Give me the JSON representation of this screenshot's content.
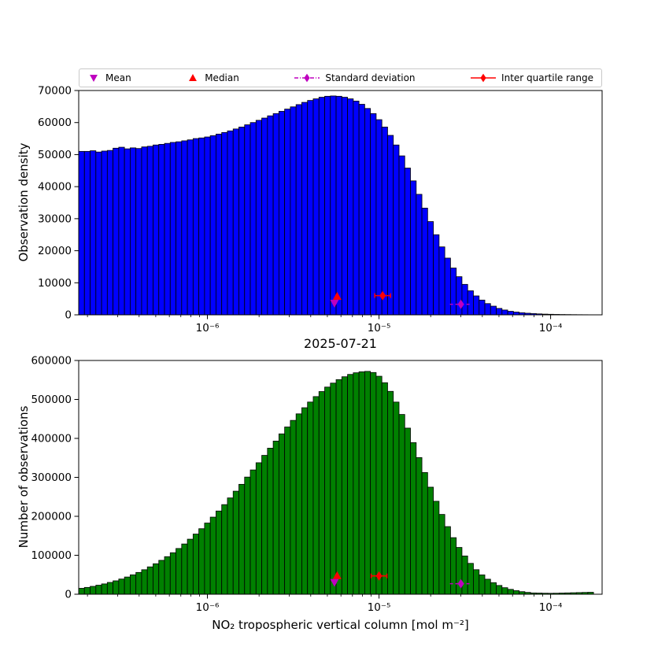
{
  "figure": {
    "title_between": "2025-07-21",
    "xlabel": "NO₂ tropospheric vertical column [mol m⁻²]",
    "background": "#ffffff"
  },
  "legend": {
    "position": "top",
    "items": [
      {
        "label": "Mean",
        "marker": "triangle-down",
        "color": "#bf00bf",
        "line": "none"
      },
      {
        "label": "Median",
        "marker": "triangle-up",
        "color": "#ff0000",
        "line": "none"
      },
      {
        "label": "Standard deviation",
        "marker": "diamond",
        "color": "#bf00bf",
        "line": "dashdot"
      },
      {
        "label": "Inter quartile range",
        "marker": "diamond",
        "color": "#ff0000",
        "line": "solid"
      }
    ]
  },
  "chart_data": [
    {
      "type": "bar",
      "name": "observation-density-histogram",
      "ylabel": "Observation density",
      "bar_color": "#0000ff",
      "edge_color": "#000000",
      "x_scale": "log10",
      "x_range_log10": [
        -6.75,
        -3.7
      ],
      "bin_start_log10": -6.75,
      "bin_step_log10": 0.0333333,
      "ylim": [
        0,
        70000
      ],
      "yticks": [
        0,
        10000,
        20000,
        30000,
        40000,
        50000,
        60000,
        70000
      ],
      "xticks": [
        {
          "log10": -6,
          "label": "10⁻⁶"
        },
        {
          "log10": -5,
          "label": "10⁻⁵"
        },
        {
          "log10": -4,
          "label": "10⁻⁴"
        }
      ],
      "values": [
        51000,
        51000,
        51200,
        50800,
        51100,
        51300,
        52000,
        52300,
        51800,
        52100,
        51900,
        52400,
        52600,
        53000,
        53200,
        53500,
        53800,
        54000,
        54300,
        54600,
        55000,
        55200,
        55500,
        55900,
        56400,
        56900,
        57400,
        58000,
        58600,
        59300,
        60000,
        60700,
        61400,
        62100,
        62800,
        63500,
        64200,
        64900,
        65600,
        66300,
        66900,
        67400,
        67900,
        68200,
        68300,
        68200,
        67900,
        67400,
        66700,
        65700,
        64400,
        62800,
        60900,
        58600,
        56000,
        53000,
        49600,
        45800,
        41800,
        37600,
        33300,
        29100,
        25000,
        21200,
        17700,
        14600,
        11900,
        9500,
        7500,
        5900,
        4600,
        3500,
        2700,
        2000,
        1500,
        1100,
        850,
        650,
        500,
        380,
        290,
        220,
        170,
        130,
        100,
        80,
        60,
        45,
        35,
        25
      ],
      "markers": {
        "mean": {
          "x": 5.5e-06,
          "y": 3600
        },
        "median": {
          "x": 5.7e-06,
          "y": 5800
        },
        "std": {
          "x": 3e-05,
          "y": 3300
        },
        "iqr": {
          "x": 1.05e-05,
          "y": 6000
        }
      }
    },
    {
      "type": "bar",
      "name": "number-of-observations-histogram",
      "ylabel": "Number of observations",
      "bar_color": "#008000",
      "edge_color": "#000000",
      "x_scale": "log10",
      "x_range_log10": [
        -6.75,
        -3.7
      ],
      "bin_start_log10": -6.75,
      "bin_step_log10": 0.0333333,
      "ylim": [
        0,
        600000
      ],
      "yticks": [
        0,
        100000,
        200000,
        300000,
        400000,
        500000,
        600000
      ],
      "xticks": [
        {
          "log10": -6,
          "label": "10⁻⁶"
        },
        {
          "log10": -5,
          "label": "10⁻⁵"
        },
        {
          "log10": -4,
          "label": "10⁻⁴"
        }
      ],
      "values": [
        15200,
        17500,
        20200,
        23200,
        26500,
        30300,
        34400,
        39000,
        44200,
        49800,
        55900,
        62900,
        70200,
        78200,
        87000,
        96400,
        106500,
        117400,
        129000,
        141300,
        154400,
        168200,
        182700,
        197900,
        213600,
        230000,
        247200,
        264500,
        282100,
        300700,
        319000,
        337500,
        356400,
        374900,
        393100,
        411600,
        429300,
        446200,
        463000,
        478700,
        493300,
        507300,
        520200,
        531700,
        541900,
        550900,
        558200,
        564200,
        568400,
        571000,
        572000,
        569100,
        559500,
        542900,
        520700,
        493200,
        461400,
        426400,
        389100,
        350700,
        312400,
        274800,
        238600,
        204800,
        173600,
        145200,
        120100,
        98200,
        79200,
        63000,
        49600,
        38600,
        29700,
        22500,
        16800,
        12500,
        9100,
        6600,
        4700,
        3300,
        3000,
        2600,
        2400,
        2600,
        3000,
        3400,
        3800,
        4200,
        4600,
        5000
      ],
      "markers": {
        "mean": {
          "x": 5.5e-06,
          "y": 30000
        },
        "median": {
          "x": 5.7e-06,
          "y": 48000
        },
        "std": {
          "x": 3e-05,
          "y": 27000
        },
        "iqr": {
          "x": 1e-05,
          "y": 47000
        }
      }
    }
  ]
}
